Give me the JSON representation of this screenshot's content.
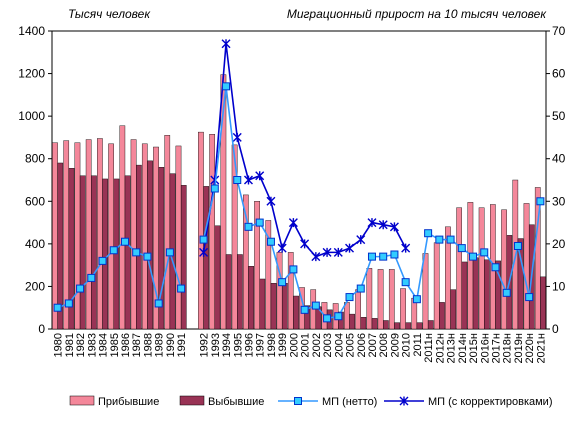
{
  "chart_data": {
    "type": "bar",
    "left_axis_title": "Тысяч человек",
    "right_axis_title": "Миграционный прирост на 10 тысяч человек",
    "ylim_left": [
      0,
      1400
    ],
    "ylim_right": [
      0,
      70
    ],
    "y_ticks_left": [
      "0",
      "200",
      "400",
      "600",
      "800",
      "1000",
      "1200",
      "1400"
    ],
    "y_ticks_right": [
      "0",
      "10",
      "20",
      "30",
      "40",
      "50",
      "60",
      "70"
    ],
    "categories": [
      "1980",
      "1981",
      "1982",
      "1983",
      "1984",
      "1985",
      "1986",
      "1987",
      "1988",
      "1989",
      "1990",
      "1991",
      "1992",
      "1993",
      "1994",
      "1995",
      "1996",
      "1997",
      "1998",
      "1999",
      "2000",
      "2001",
      "2002",
      "2003",
      "2004",
      "2005",
      "2006",
      "2007",
      "2008",
      "2009",
      "2010",
      "2011",
      "2011н",
      "2012н",
      "2013н",
      "2014н",
      "2015н",
      "2016н",
      "2017н",
      "2018н",
      "2019н",
      "2020н",
      "2021н"
    ],
    "series": [
      {
        "name": "Прибывшие",
        "axis": "left",
        "kind": "bar",
        "color": "#f4879a",
        "values": [
          875,
          885,
          875,
          890,
          895,
          870,
          955,
          890,
          870,
          855,
          910,
          860,
          925,
          915,
          1195,
          865,
          630,
          600,
          510,
          360,
          360,
          195,
          185,
          125,
          120,
          125,
          185,
          285,
          280,
          280,
          190,
          145,
          355,
          405,
          480,
          570,
          595,
          570,
          585,
          560,
          700,
          590,
          665
        ]
      },
      {
        "name": "Выбывшие",
        "axis": "left",
        "kind": "bar",
        "color": "#993355",
        "values": [
          780,
          755,
          720,
          720,
          705,
          705,
          720,
          770,
          790,
          760,
          730,
          675,
          670,
          485,
          350,
          350,
          295,
          235,
          215,
          215,
          155,
          110,
          105,
          90,
          80,
          70,
          55,
          50,
          40,
          30,
          30,
          30,
          40,
          125,
          185,
          315,
          335,
          325,
          320,
          440,
          425,
          490,
          245
        ]
      },
      {
        "name": "МП  (нетто)",
        "axis": "right",
        "kind": "line",
        "color": "#3399ff",
        "values": [
          5,
          6,
          9.5,
          12,
          16,
          18.5,
          20.5,
          18,
          17,
          6,
          18,
          9.5,
          21,
          33,
          57,
          35,
          24,
          25,
          20.5,
          11,
          14,
          4.5,
          5.5,
          2.5,
          3,
          7.5,
          9.5,
          17,
          17,
          17.5,
          11,
          7,
          22.5,
          21,
          21,
          19,
          17,
          18,
          14.5,
          8.5,
          19.5,
          7.5,
          30
        ]
      },
      {
        "name": "МП  (с корректировками)",
        "axis": "right",
        "kind": "line",
        "color": "#0000cc",
        "values": [
          null,
          null,
          null,
          null,
          null,
          null,
          null,
          null,
          null,
          null,
          null,
          null,
          18,
          35,
          67,
          45,
          35,
          36,
          30,
          19,
          25,
          20,
          17,
          18,
          18,
          19,
          21,
          25,
          24.5,
          24,
          19,
          null,
          null,
          null,
          null,
          null,
          null,
          null,
          null,
          null,
          null,
          null,
          null
        ]
      }
    ],
    "legend_placement": "bottom",
    "grid": false
  }
}
